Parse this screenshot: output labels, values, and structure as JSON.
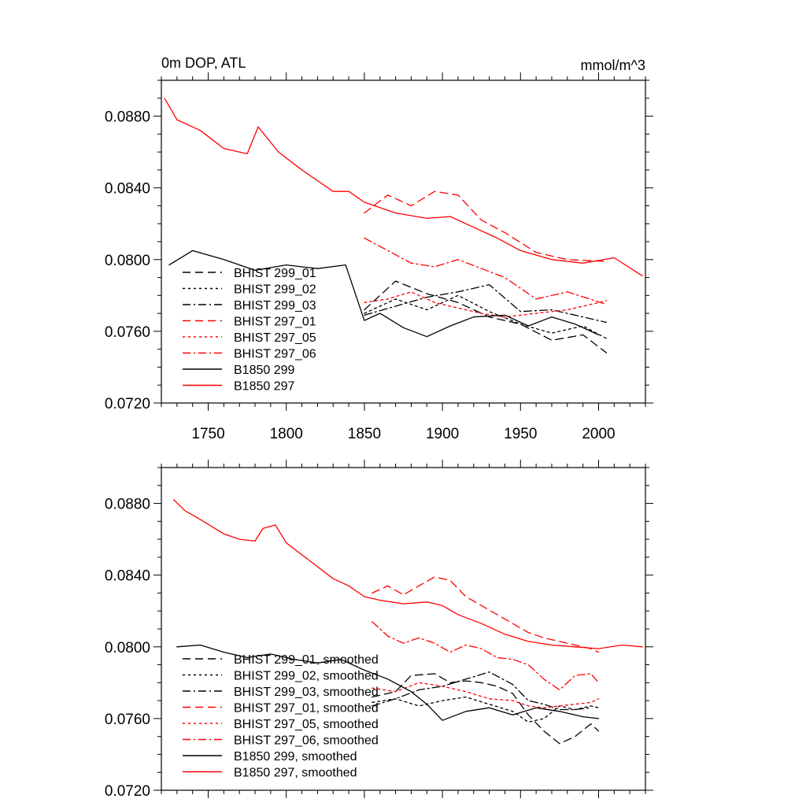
{
  "chart_data": [
    {
      "type": "line",
      "title_left": "0m DOP, ATL",
      "title_right": "mmol/m^3",
      "xlabel": "",
      "ylabel": "",
      "xlim": [
        1720,
        2030
      ],
      "ylim": [
        0.072,
        0.09
      ],
      "xticks": [
        1750,
        1800,
        1850,
        1900,
        1950,
        2000
      ],
      "xtick_labels": [
        "1750",
        "1800",
        "1850",
        "1900",
        "1950",
        "2000"
      ],
      "yticks": [
        0.072,
        0.076,
        0.08,
        0.084,
        0.088
      ],
      "ytick_labels": [
        "0.0720",
        "0.0760",
        "0.0800",
        "0.0840",
        "0.0880"
      ],
      "legend_position": "lower-left",
      "series": [
        {
          "name": "BHIST 299_01",
          "color": "#000000",
          "dash": "dash",
          "x": [
            1850,
            1870,
            1890,
            1910,
            1930,
            1950,
            1970,
            1990,
            2005
          ],
          "y": [
            0.0772,
            0.0788,
            0.0781,
            0.0776,
            0.0768,
            0.0764,
            0.0755,
            0.0758,
            0.0748
          ]
        },
        {
          "name": "BHIST 299_02",
          "color": "#000000",
          "dash": "dot",
          "x": [
            1850,
            1870,
            1890,
            1910,
            1930,
            1950,
            1970,
            1990,
            2005
          ],
          "y": [
            0.077,
            0.0778,
            0.0772,
            0.078,
            0.0771,
            0.0764,
            0.0759,
            0.0763,
            0.0756
          ]
        },
        {
          "name": "BHIST 299_03",
          "color": "#000000",
          "dash": "dashdot",
          "x": [
            1850,
            1870,
            1890,
            1910,
            1930,
            1950,
            1970,
            1990,
            2005
          ],
          "y": [
            0.0769,
            0.0774,
            0.0779,
            0.0782,
            0.0786,
            0.0771,
            0.0772,
            0.0768,
            0.0765
          ]
        },
        {
          "name": "BHIST 297_01",
          "color": "#ff0000",
          "dash": "dash",
          "x": [
            1850,
            1865,
            1880,
            1895,
            1910,
            1925,
            1940,
            1960,
            1980,
            2005
          ],
          "y": [
            0.0826,
            0.0836,
            0.083,
            0.0838,
            0.0836,
            0.0822,
            0.0815,
            0.0804,
            0.08,
            0.0799
          ]
        },
        {
          "name": "BHIST 297_05",
          "color": "#ff0000",
          "dash": "dot",
          "x": [
            1850,
            1865,
            1880,
            1895,
            1910,
            1925,
            1940,
            1960,
            1980,
            2005
          ],
          "y": [
            0.0776,
            0.0778,
            0.0782,
            0.0776,
            0.0773,
            0.077,
            0.0768,
            0.077,
            0.0772,
            0.0777
          ]
        },
        {
          "name": "BHIST 297_06",
          "color": "#ff0000",
          "dash": "dashdot",
          "x": [
            1850,
            1865,
            1880,
            1895,
            1910,
            1925,
            1940,
            1960,
            1980,
            2005
          ],
          "y": [
            0.0812,
            0.0805,
            0.0798,
            0.0796,
            0.08,
            0.0795,
            0.079,
            0.0778,
            0.0782,
            0.0775
          ]
        },
        {
          "name": "B1850 299",
          "color": "#000000",
          "dash": "solid",
          "x": [
            1725,
            1740,
            1760,
            1780,
            1800,
            1820,
            1838,
            1850,
            1860,
            1875,
            1890,
            1905,
            1920,
            1940,
            1955,
            1970,
            1985,
            2000
          ],
          "y": [
            0.0797,
            0.0805,
            0.08,
            0.0794,
            0.0797,
            0.0795,
            0.0797,
            0.0766,
            0.077,
            0.0762,
            0.0757,
            0.0763,
            0.0768,
            0.0769,
            0.0763,
            0.0768,
            0.0764,
            0.0758
          ]
        },
        {
          "name": "B1850 297",
          "color": "#ff0000",
          "dash": "solid",
          "x": [
            1722,
            1730,
            1745,
            1760,
            1775,
            1782,
            1795,
            1810,
            1830,
            1840,
            1850,
            1870,
            1890,
            1905,
            1920,
            1935,
            1950,
            1970,
            1990,
            2010,
            2028
          ],
          "y": [
            0.089,
            0.0878,
            0.0872,
            0.0862,
            0.0859,
            0.0874,
            0.086,
            0.085,
            0.0838,
            0.0838,
            0.0832,
            0.0826,
            0.0823,
            0.0824,
            0.0818,
            0.0812,
            0.0805,
            0.08,
            0.0798,
            0.0801,
            0.0791
          ]
        }
      ]
    },
    {
      "type": "line",
      "title_left": "",
      "title_right": "",
      "xlabel": "",
      "ylabel": "",
      "xlim": [
        1720,
        2030
      ],
      "ylim": [
        0.072,
        0.09
      ],
      "xticks": [
        1750,
        1800,
        1850,
        1900,
        1950,
        2000
      ],
      "xtick_labels": [],
      "yticks": [
        0.072,
        0.076,
        0.08,
        0.084,
        0.088
      ],
      "ytick_labels": [
        "0.0720",
        "0.0760",
        "0.0800",
        "0.0840",
        "0.0880"
      ],
      "legend_position": "lower-left",
      "series": [
        {
          "name": "BHIST 299_01, smoothed",
          "color": "#000000",
          "dash": "dash",
          "x": [
            1855,
            1870,
            1880,
            1895,
            1905,
            1915,
            1925,
            1935,
            1945,
            1955,
            1965,
            1975,
            1985,
            1995,
            2000
          ],
          "y": [
            0.0772,
            0.0775,
            0.0784,
            0.0785,
            0.078,
            0.0781,
            0.078,
            0.0778,
            0.0774,
            0.0762,
            0.0753,
            0.0746,
            0.075,
            0.0757,
            0.0753
          ]
        },
        {
          "name": "BHIST 299_02, smoothed",
          "color": "#000000",
          "dash": "dot",
          "x": [
            1855,
            1870,
            1885,
            1900,
            1915,
            1930,
            1945,
            1955,
            1965,
            1975,
            1985,
            1995,
            2000
          ],
          "y": [
            0.0769,
            0.0771,
            0.0767,
            0.077,
            0.0772,
            0.0768,
            0.0764,
            0.0758,
            0.076,
            0.0767,
            0.0765,
            0.0767,
            0.0766
          ]
        },
        {
          "name": "BHIST 299_03, smoothed",
          "color": "#000000",
          "dash": "dashdot",
          "x": [
            1855,
            1870,
            1885,
            1900,
            1915,
            1930,
            1945,
            1955,
            1965,
            1975,
            1985,
            1995
          ],
          "y": [
            0.0767,
            0.0771,
            0.0776,
            0.0778,
            0.0782,
            0.0786,
            0.0779,
            0.077,
            0.0768,
            0.0765,
            0.0765,
            0.0766
          ]
        },
        {
          "name": "BHIST 297_01, smoothed",
          "color": "#ff0000",
          "dash": "dash",
          "x": [
            1855,
            1865,
            1875,
            1885,
            1895,
            1905,
            1915,
            1925,
            1935,
            1945,
            1955,
            1965,
            1975,
            1985,
            1995,
            2000
          ],
          "y": [
            0.083,
            0.0834,
            0.0829,
            0.0834,
            0.0839,
            0.0837,
            0.0828,
            0.0823,
            0.0818,
            0.0813,
            0.0808,
            0.0805,
            0.0803,
            0.0801,
            0.0799,
            0.0797
          ]
        },
        {
          "name": "BHIST 297_05, smoothed",
          "color": "#ff0000",
          "dash": "dot",
          "x": [
            1855,
            1870,
            1885,
            1900,
            1915,
            1930,
            1945,
            1955,
            1965,
            1975,
            1985,
            1995,
            2000
          ],
          "y": [
            0.0777,
            0.0775,
            0.078,
            0.0778,
            0.0775,
            0.0771,
            0.077,
            0.0767,
            0.0766,
            0.0767,
            0.0768,
            0.0769,
            0.0771
          ]
        },
        {
          "name": "BHIST 297_06, smoothed",
          "color": "#ff0000",
          "dash": "dashdot",
          "x": [
            1855,
            1865,
            1875,
            1885,
            1895,
            1905,
            1915,
            1925,
            1935,
            1945,
            1955,
            1965,
            1975,
            1985,
            1995,
            2000
          ],
          "y": [
            0.0814,
            0.0806,
            0.0802,
            0.0805,
            0.0802,
            0.0797,
            0.0801,
            0.0799,
            0.0794,
            0.0793,
            0.079,
            0.0782,
            0.0776,
            0.0784,
            0.0785,
            0.078
          ]
        },
        {
          "name": "B1850 299, smoothed",
          "color": "#000000",
          "dash": "solid",
          "x": [
            1730,
            1745,
            1760,
            1775,
            1790,
            1805,
            1820,
            1835,
            1850,
            1865,
            1880,
            1890,
            1900,
            1915,
            1930,
            1945,
            1960,
            1975,
            1990,
            2000
          ],
          "y": [
            0.08,
            0.0801,
            0.0797,
            0.0794,
            0.0796,
            0.0793,
            0.0791,
            0.0793,
            0.0787,
            0.0782,
            0.0775,
            0.0768,
            0.0759,
            0.0764,
            0.0766,
            0.0762,
            0.0766,
            0.0764,
            0.0761,
            0.076
          ]
        },
        {
          "name": "B1850 297, smoothed",
          "color": "#ff0000",
          "dash": "solid",
          "x": [
            1728,
            1735,
            1745,
            1760,
            1770,
            1780,
            1785,
            1793,
            1800,
            1815,
            1830,
            1840,
            1850,
            1860,
            1875,
            1890,
            1900,
            1910,
            1925,
            1940,
            1955,
            1970,
            1985,
            2000,
            2015,
            2028
          ],
          "y": [
            0.0882,
            0.0876,
            0.0871,
            0.0863,
            0.086,
            0.0859,
            0.0866,
            0.0868,
            0.0858,
            0.0848,
            0.0838,
            0.0834,
            0.0828,
            0.0826,
            0.0824,
            0.0825,
            0.0823,
            0.0818,
            0.0813,
            0.0807,
            0.0803,
            0.0801,
            0.08,
            0.0799,
            0.0801,
            0.08
          ]
        }
      ]
    }
  ]
}
